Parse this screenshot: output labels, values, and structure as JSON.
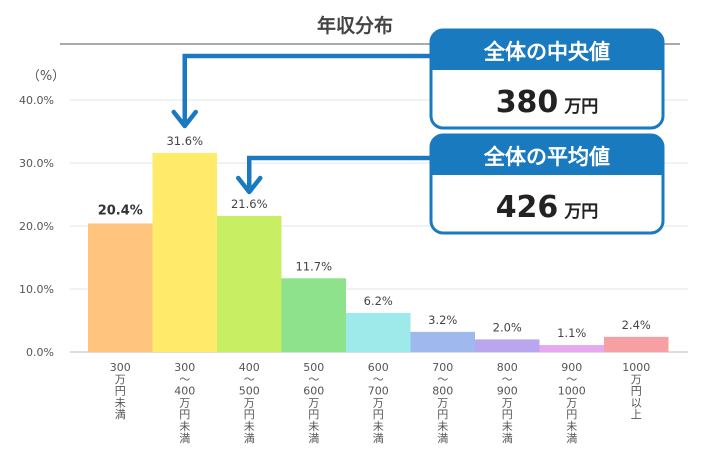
{
  "chart_data": {
    "type": "bar",
    "title": "年収分布",
    "yunit": "（%）",
    "ylim": [
      0,
      40
    ],
    "yticks": [
      "0.0%",
      "10.0%",
      "20.0%",
      "30.0%",
      "40.0%"
    ],
    "ytick_values": [
      0,
      10,
      20,
      30,
      40
    ],
    "grid": true,
    "categories": [
      [
        "300",
        "万",
        "円",
        "未",
        "満"
      ],
      [
        "300",
        "〜",
        "400",
        "万",
        "円",
        "未",
        "満"
      ],
      [
        "400",
        "〜",
        "500",
        "万",
        "円",
        "未",
        "満"
      ],
      [
        "500",
        "〜",
        "600",
        "万",
        "円",
        "未",
        "満"
      ],
      [
        "600",
        "〜",
        "700",
        "万",
        "円",
        "未",
        "満"
      ],
      [
        "700",
        "〜",
        "800",
        "万",
        "円",
        "未",
        "満"
      ],
      [
        "800",
        "〜",
        "900",
        "万",
        "円",
        "未",
        "満"
      ],
      [
        "900",
        "〜",
        "1000",
        "万",
        "円",
        "未",
        "満"
      ],
      [
        "1000",
        "万",
        "円",
        "以",
        "上"
      ]
    ],
    "values": [
      20.4,
      31.6,
      21.6,
      11.7,
      6.2,
      3.2,
      2.0,
      1.1,
      2.4
    ],
    "value_labels": [
      "20.4%",
      "31.6%",
      "21.6%",
      "11.7%",
      "6.2%",
      "3.2%",
      "2.0%",
      "1.1%",
      "2.4%"
    ],
    "colors": [
      "#FFC47E",
      "#FFEA6A",
      "#C8EE63",
      "#8FE28C",
      "#9EEAEA",
      "#9FB9EE",
      "#B9A6EE",
      "#E6A8EE",
      "#F6A0A3"
    ],
    "annotations": [
      {
        "heading": "全体の中央値",
        "value": "380",
        "unit": "万円",
        "points_to_category": 1
      },
      {
        "heading": "全体の平均値",
        "value": "426",
        "unit": "万円",
        "points_to_category": 2
      }
    ],
    "accent_color": "#1A7AC0"
  }
}
